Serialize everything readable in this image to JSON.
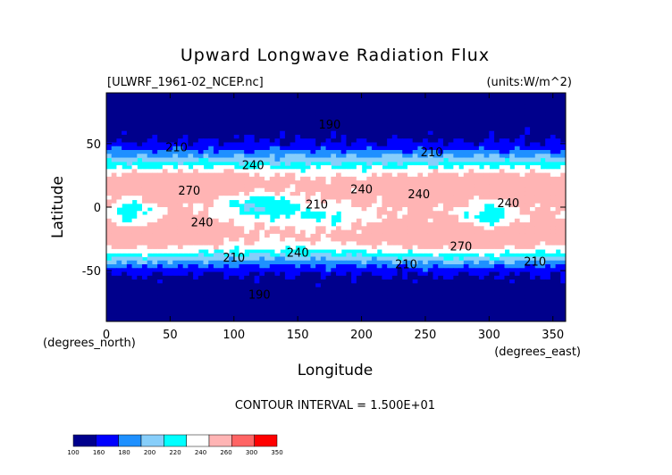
{
  "chart_data": {
    "type": "heatmap",
    "title": "Upward Longwave Radiation Flux",
    "file_label": "[ULWRF_1961-02_NCEP.nc]",
    "units_label": "(units:W/m^2)",
    "xlabel": "Longitude",
    "ylabel": "Latitude",
    "x_unit_label": "(degrees_east)",
    "y_unit_label": "(degrees_north)",
    "xlim": [
      0,
      360
    ],
    "ylim": [
      -90,
      90
    ],
    "x_ticks": [
      "0",
      "50",
      "100",
      "150",
      "200",
      "250",
      "300",
      "350"
    ],
    "x_tick_values": [
      0,
      50,
      100,
      150,
      200,
      250,
      300,
      350
    ],
    "y_ticks": [
      "50",
      "0",
      "-50"
    ],
    "y_tick_values": [
      50,
      0,
      -50
    ],
    "contour_interval_label": "CONTOUR INTERVAL = 1.500E+01",
    "colorbar": {
      "labels": [
        "100",
        "160",
        "180",
        "200",
        "220",
        "240",
        "260",
        "300",
        "350"
      ],
      "colors": [
        "#00008c",
        "#0000ff",
        "#1e90ff",
        "#87cefa",
        "#00ffff",
        "#ffffff",
        "#ffb4b4",
        "#ff6464",
        "#ff0000"
      ]
    },
    "contour_labels": [
      {
        "text": "190",
        "lon": 175,
        "lat": 62
      },
      {
        "text": "210",
        "lon": 55,
        "lat": 44
      },
      {
        "text": "240",
        "lon": 115,
        "lat": 30
      },
      {
        "text": "210",
        "lon": 255,
        "lat": 40
      },
      {
        "text": "270",
        "lon": 65,
        "lat": 10
      },
      {
        "text": "240",
        "lon": 200,
        "lat": 11
      },
      {
        "text": "240",
        "lon": 245,
        "lat": 7
      },
      {
        "text": "210",
        "lon": 165,
        "lat": -1
      },
      {
        "text": "240",
        "lon": 315,
        "lat": 0
      },
      {
        "text": "240",
        "lon": 75,
        "lat": -15
      },
      {
        "text": "240",
        "lon": 150,
        "lat": -39
      },
      {
        "text": "270",
        "lon": 278,
        "lat": -34
      },
      {
        "text": "210",
        "lon": 100,
        "lat": -43
      },
      {
        "text": "210",
        "lon": 235,
        "lat": -48
      },
      {
        "text": "210",
        "lon": 336,
        "lat": -46
      },
      {
        "text": "190",
        "lon": 120,
        "lat": -72
      }
    ]
  }
}
